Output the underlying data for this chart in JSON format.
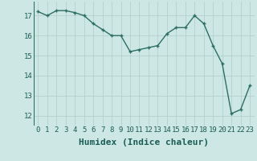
{
  "x": [
    0,
    1,
    2,
    3,
    4,
    5,
    6,
    7,
    8,
    9,
    10,
    11,
    12,
    13,
    14,
    15,
    16,
    17,
    18,
    19,
    20,
    21,
    22,
    23
  ],
  "y": [
    17.2,
    17.0,
    17.25,
    17.25,
    17.15,
    17.0,
    16.6,
    16.3,
    16.0,
    16.0,
    15.2,
    15.3,
    15.4,
    15.5,
    16.1,
    16.4,
    16.4,
    17.0,
    16.6,
    15.5,
    14.6,
    12.1,
    12.3,
    13.5
  ],
  "line_color": "#2d6e63",
  "marker": "+",
  "marker_size": 3.5,
  "line_width": 1.0,
  "bg_color": "#cde8e4",
  "grid_color": "#b0ccc8",
  "xlabel": "Humidex (Indice chaleur)",
  "xlabel_fontsize": 8,
  "ylabel_ticks": [
    12,
    13,
    14,
    15,
    16,
    17
  ],
  "xlim": [
    -0.5,
    23.5
  ],
  "ylim": [
    11.5,
    17.7
  ],
  "xtick_labels": [
    "0",
    "1",
    "2",
    "3",
    "4",
    "5",
    "6",
    "7",
    "8",
    "9",
    "10",
    "11",
    "12",
    "13",
    "14",
    "15",
    "16",
    "17",
    "18",
    "19",
    "20",
    "21",
    "22",
    "23"
  ],
  "tick_fontsize": 6.5
}
